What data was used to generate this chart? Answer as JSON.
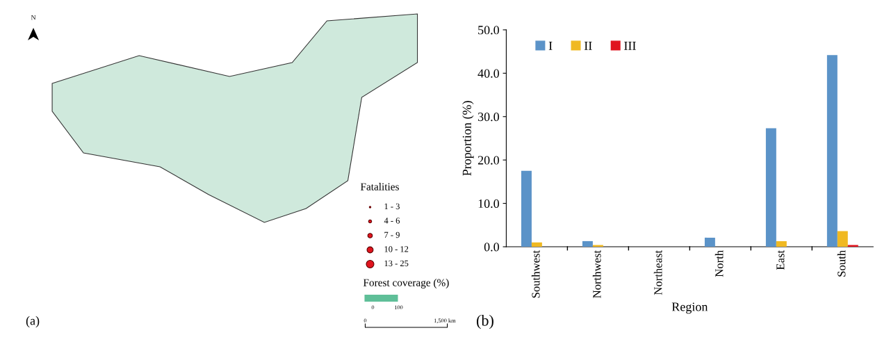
{
  "chart_data": [
    {
      "type": "other",
      "annotations": [
        "N",
        "Fatalities",
        "1 - 3",
        "4 - 6",
        "7 - 9",
        "10 - 12",
        "13 - 25",
        "Forest coverage (%)",
        "0",
        "100",
        "0",
        "1,500 km",
        "(a)"
      ]
    },
    {
      "type": "bar",
      "xlabel": "Region",
      "ylabel": "Proportion (%)",
      "annotations": [
        "(b)"
      ],
      "categories": [
        "Southwest",
        "Northwest",
        "Northeast",
        "North",
        "East",
        "South"
      ],
      "series": [
        {
          "name": "I",
          "color": "#5b93c8",
          "values": [
            17.5,
            1.3,
            0,
            2.1,
            27.3,
            44.2
          ]
        },
        {
          "name": "II",
          "color": "#f0b922",
          "values": [
            1.0,
            0.4,
            0,
            0,
            1.3,
            3.6
          ]
        },
        {
          "name": "III",
          "color": "#e0141e",
          "values": [
            0,
            0,
            0,
            0,
            0,
            0.4
          ]
        }
      ],
      "ylim": [
        0,
        50
      ],
      "yticks": [
        {
          "value": 0,
          "label": "0.0"
        },
        {
          "value": 10,
          "label": "10.0"
        },
        {
          "value": 20,
          "label": "20.0"
        },
        {
          "value": 30,
          "label": "30.0"
        },
        {
          "value": 40,
          "label": "40.0"
        },
        {
          "value": 50,
          "label": "50.0"
        }
      ],
      "grid": false,
      "legend": "top left"
    }
  ]
}
